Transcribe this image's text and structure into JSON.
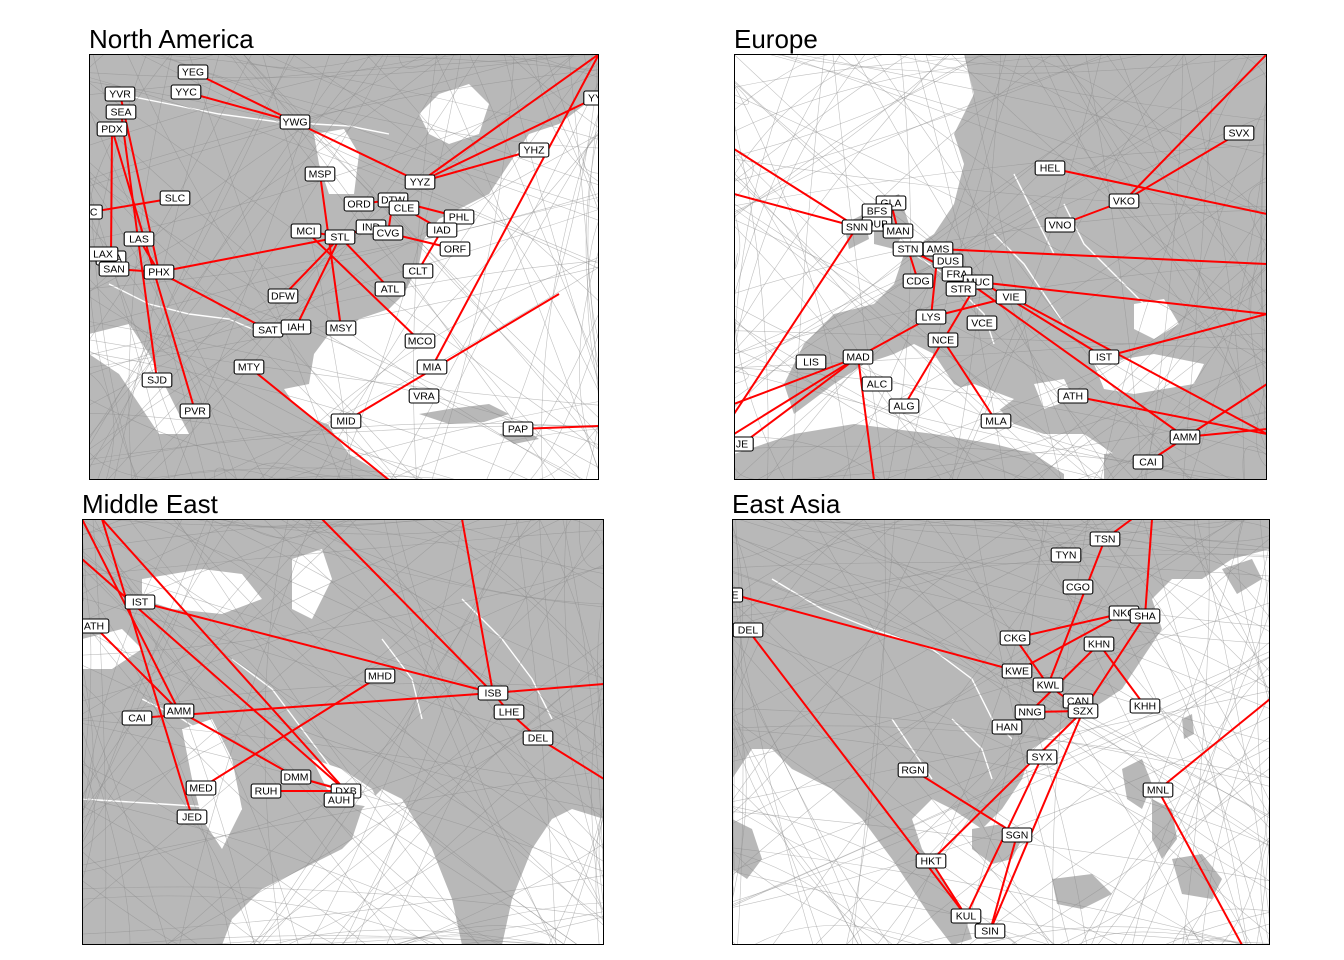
{
  "panels": [
    {
      "title": "North America",
      "airports": [
        "YEG",
        "YVR",
        "YYC",
        "SEA",
        "PDX",
        "YWG",
        "YHZ",
        "YYZ",
        "MSP",
        "SLC",
        "ORD",
        "DTW",
        "CLE",
        "PHL",
        "IND",
        "CVG",
        "IAD",
        "ORF",
        "MCI",
        "STL",
        "LAS",
        "SNA",
        "SAN",
        "PHX",
        "CLT",
        "DFW",
        "ATL",
        "SAT",
        "IAH",
        "MSY",
        "MCO",
        "MTY",
        "SJD",
        "MIA",
        "VRA",
        "PVR",
        "MID",
        "PAP",
        "JC",
        "YY",
        "LAX"
      ]
    },
    {
      "title": "Europe",
      "airports": [
        "GLA",
        "BFS",
        "DUB",
        "SNN",
        "MAN",
        "STN",
        "AMS",
        "DUS",
        "FRA",
        "MUC",
        "CDG",
        "STR",
        "LYS",
        "VCE",
        "NCE",
        "VIE",
        "MAD",
        "LIS",
        "ALC",
        "ALG",
        "MLA",
        "IST",
        "ATH",
        "AMM",
        "CAI",
        "HEL",
        "VKO",
        "SVX",
        "VNO",
        "JE"
      ]
    },
    {
      "title": "Middle East",
      "airports": [
        "IST",
        "ATH",
        "MHD",
        "ISB",
        "LHE",
        "DEL",
        "CAI",
        "AMM",
        "DMM",
        "MED",
        "RUH",
        "DXB",
        "AUH",
        "JED"
      ]
    },
    {
      "title": "East Asia",
      "airports": [
        "TSN",
        "TYN",
        "CGO",
        "NKG",
        "SHA",
        "CKG",
        "KHN",
        "KWE",
        "KWL",
        "CAN",
        "SZX",
        "NNG",
        "HAN",
        "KHH",
        "SYX",
        "RGN",
        "MNL",
        "SGN",
        "HKT",
        "KUL",
        "SIN",
        "DEL",
        "E"
      ]
    }
  ],
  "colors": {
    "land": "#b8b8b8",
    "border": "#ffffff",
    "background_route": "#8c8c8c",
    "highlight_route": "#ff0000",
    "ocean": "#ffffff"
  }
}
